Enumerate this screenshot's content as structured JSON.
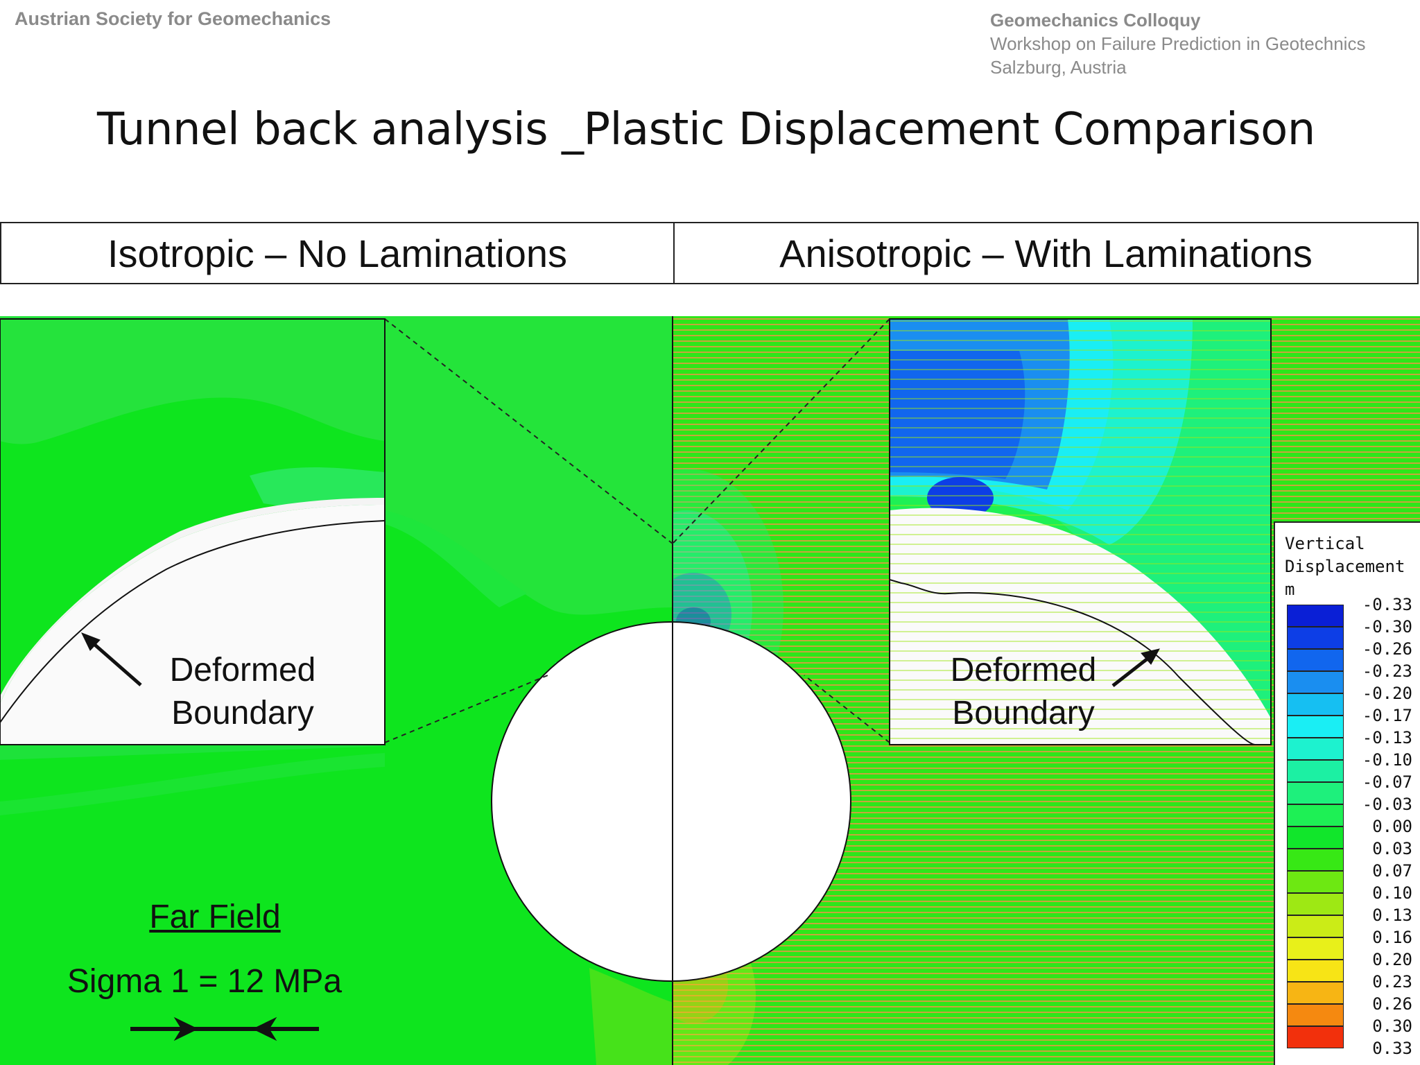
{
  "header": {
    "organization": "Austrian Society for Geomechanics",
    "event_title": "Geomechanics Colloquy",
    "event_subtitle": "Workshop on Failure Prediction in Geotechnics",
    "event_location": "Salzburg, Austria"
  },
  "slide_title": "Tunnel back analysis _Plastic Displacement Comparison",
  "captions": {
    "left": "Isotropic – No Laminations",
    "right": "Anisotropic – With Laminations"
  },
  "annotations": {
    "deformed_line1": "Deformed",
    "deformed_line2": "Boundary",
    "far_field": "Far Field",
    "sigma": "Sigma 1 = 12 MPa"
  },
  "legend": {
    "title_line1": "Vertical",
    "title_line2": "Displacement",
    "unit": "m",
    "items": [
      {
        "label": "-0.33",
        "color": "#0a1fd6"
      },
      {
        "label": "-0.30",
        "color": "#0d3ee6"
      },
      {
        "label": "-0.26",
        "color": "#1166ee"
      },
      {
        "label": "-0.23",
        "color": "#1a8ef0"
      },
      {
        "label": "-0.20",
        "color": "#16bff2"
      },
      {
        "label": "-0.17",
        "color": "#1aeef4"
      },
      {
        "label": "-0.13",
        "color": "#1df2cf"
      },
      {
        "label": "-0.10",
        "color": "#1cf0a3"
      },
      {
        "label": "-0.07",
        "color": "#1ef07c"
      },
      {
        "label": "-0.03",
        "color": "#1ef055"
      },
      {
        "label": "0.00",
        "color": "#11e62b"
      },
      {
        "label": "0.03",
        "color": "#37e815"
      },
      {
        "label": "0.07",
        "color": "#6de812"
      },
      {
        "label": "0.10",
        "color": "#9ee814"
      },
      {
        "label": "0.13",
        "color": "#cbec17"
      },
      {
        "label": "0.16",
        "color": "#e8f01a"
      },
      {
        "label": "0.20",
        "color": "#f7e416"
      },
      {
        "label": "0.23",
        "color": "#f7b514"
      },
      {
        "label": "0.26",
        "color": "#f58910"
      },
      {
        "label": "0.30",
        "color": "#f2300c"
      },
      {
        "label": "0.33",
        "color": ""
      }
    ]
  }
}
